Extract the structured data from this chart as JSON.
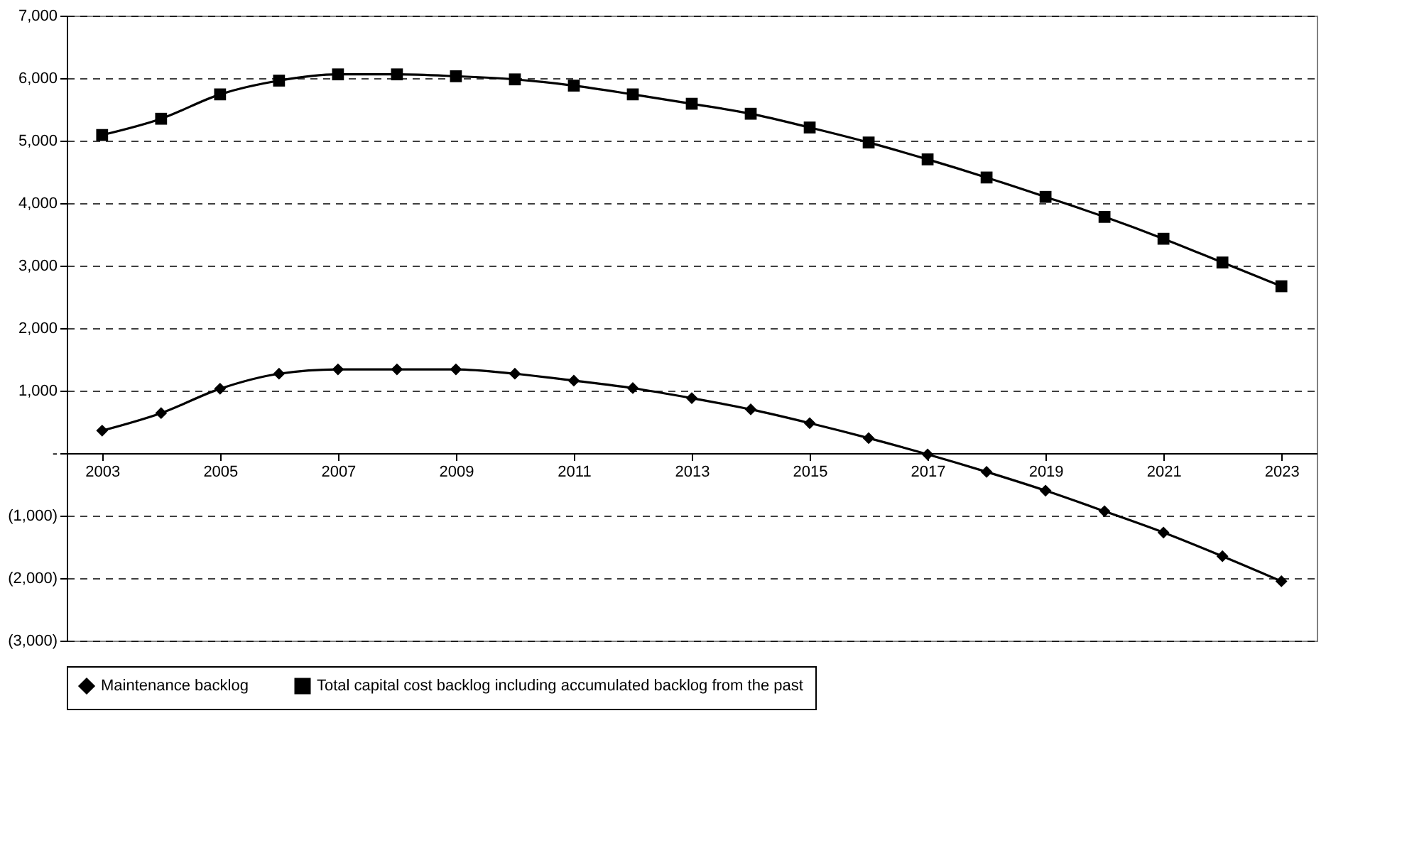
{
  "chart_data": {
    "type": "line",
    "x": [
      2003,
      2004,
      2005,
      2006,
      2007,
      2008,
      2009,
      2010,
      2011,
      2012,
      2013,
      2014,
      2015,
      2016,
      2017,
      2018,
      2019,
      2020,
      2021,
      2022,
      2023
    ],
    "series": [
      {
        "name": "Maintenance backlog",
        "color": "#000000",
        "marker": "diamond",
        "values": [
          360,
          640,
          1030,
          1270,
          1340,
          1340,
          1340,
          1270,
          1160,
          1040,
          880,
          700,
          480,
          240,
          -20,
          -300,
          -600,
          -930,
          -1270,
          -1650,
          -2050
        ]
      },
      {
        "name": "Total capital cost backlog including accumulated backlog from the past",
        "color": "#000000",
        "marker": "square",
        "values": [
          5090,
          5350,
          5740,
          5960,
          6060,
          6060,
          6030,
          5980,
          5880,
          5740,
          5590,
          5430,
          5210,
          4970,
          4700,
          4410,
          4100,
          3780,
          3430,
          3050,
          2670
        ]
      }
    ],
    "xlim": [
      2002.4,
      2023.6
    ],
    "xticks": [
      2003,
      2005,
      2007,
      2009,
      2011,
      2013,
      2015,
      2017,
      2019,
      2021,
      2023
    ],
    "ylim": [
      -3000,
      7000
    ],
    "yticks": [
      {
        "value": -3000,
        "label": "(3,000)"
      },
      {
        "value": -2000,
        "label": "(2,000)"
      },
      {
        "value": -1000,
        "label": "(1,000)"
      },
      {
        "value": 0,
        "label": "-"
      },
      {
        "value": 1000,
        "label": "1,000"
      },
      {
        "value": 2000,
        "label": "2,000"
      },
      {
        "value": 3000,
        "label": "3,000"
      },
      {
        "value": 4000,
        "label": "4,000"
      },
      {
        "value": 5000,
        "label": "5,000"
      },
      {
        "value": 6000,
        "label": "6,000"
      },
      {
        "value": 7000,
        "label": "7,000"
      }
    ],
    "grid": "y",
    "legend": "bottom",
    "line_style": "solid"
  }
}
